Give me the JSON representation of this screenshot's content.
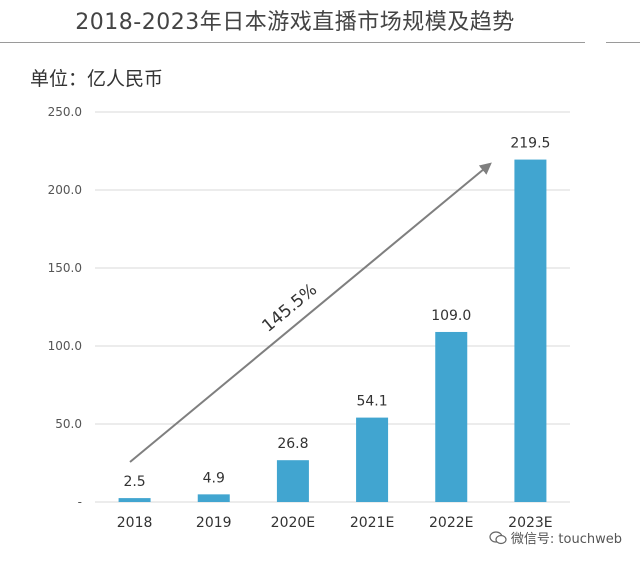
{
  "title": "2018-2023年日本游戏直播市场规模及趋势",
  "unit_label": "单位：亿人民币",
  "watermark": "微信号: touchweb",
  "colors": {
    "bar": "#41a5d0",
    "arrow": "#7f7f7f",
    "grid": "#d9d9d9"
  },
  "chart_data": {
    "type": "bar",
    "categories": [
      "2018",
      "2019",
      "2020E",
      "2021E",
      "2022E",
      "2023E"
    ],
    "values": [
      2.5,
      4.9,
      26.8,
      54.1,
      109.0,
      219.5
    ],
    "value_labels": [
      "2.5",
      "4.9",
      "26.8",
      "54.1",
      "109.0",
      "219.5"
    ],
    "y_ticks": [
      0,
      50,
      100,
      150,
      200,
      250
    ],
    "y_tick_labels": [
      "-",
      "50.0",
      "100.0",
      "150.0",
      "200.0",
      "250.0"
    ],
    "ylim": [
      0,
      250
    ],
    "grid": true,
    "annotation": {
      "text": "145.5%",
      "type": "arrow",
      "from_category": "2018",
      "to_category": "2023E"
    }
  }
}
